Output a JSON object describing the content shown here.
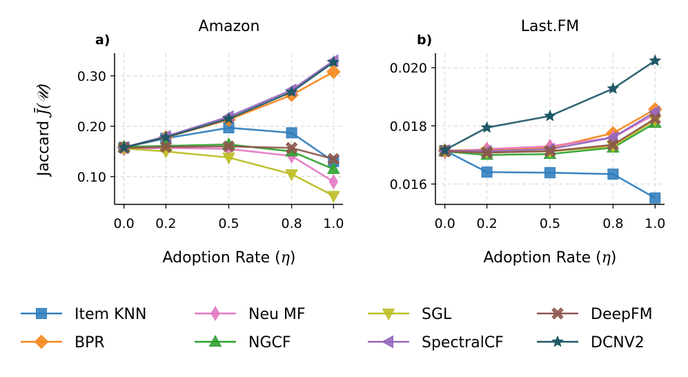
{
  "figure": {
    "ylabel_text": "Jaccard",
    "ylabel_symbol": "J̄(𝒰)"
  },
  "colors": {
    "Item KNN": "#2f7dbd",
    "BPR": "#f58518",
    "Neu MF": "#e377c2",
    "NGCF": "#2ca02c",
    "SGL": "#bcbd22",
    "SpectralCF": "#9467bd",
    "DeepFM": "#8c564b",
    "DCNV2": "#1f5866"
  },
  "markers": {
    "Item KNN": "square-icon",
    "BPR": "diamond-icon",
    "Neu MF": "thin-diamond-icon",
    "NGCF": "triangle-up-icon",
    "SGL": "triangle-down-icon",
    "SpectralCF": "triangle-left-icon",
    "DeepFM": "x-filled-icon",
    "DCNV2": "star-icon"
  },
  "chart_data": [
    {
      "type": "line",
      "panel": "a)",
      "title": "Amazon",
      "xlabel": "Adoption Rate (η)",
      "ylabel": "Jaccard J̄(𝒰)",
      "x": [
        0.0,
        0.2,
        0.5,
        0.8,
        1.0
      ],
      "xticks": [
        "0.0",
        "0.2",
        "0.5",
        "0.8",
        "1.0"
      ],
      "ylim": [
        0.045,
        0.345
      ],
      "yticks": [
        0.1,
        0.2,
        0.3
      ],
      "ytick_labels": [
        "0.10",
        "0.20",
        "0.30"
      ],
      "grid": true,
      "series": [
        {
          "name": "Item KNN",
          "values": [
            0.158,
            0.176,
            0.197,
            0.187,
            0.13
          ]
        },
        {
          "name": "BPR",
          "values": [
            0.158,
            0.178,
            0.213,
            0.262,
            0.308
          ]
        },
        {
          "name": "Neu MF",
          "values": [
            0.155,
            0.157,
            0.155,
            0.141,
            0.09
          ]
        },
        {
          "name": "NGCF",
          "values": [
            0.159,
            0.161,
            0.164,
            0.15,
            0.115
          ]
        },
        {
          "name": "SGL",
          "values": [
            0.156,
            0.15,
            0.138,
            0.105,
            0.062
          ]
        },
        {
          "name": "SpectralCF",
          "values": [
            0.158,
            0.18,
            0.219,
            0.272,
            0.33
          ]
        },
        {
          "name": "DeepFM",
          "values": [
            0.157,
            0.159,
            0.16,
            0.157,
            0.135
          ]
        },
        {
          "name": "DCNV2",
          "values": [
            0.158,
            0.178,
            0.215,
            0.268,
            0.327
          ]
        }
      ]
    },
    {
      "type": "line",
      "panel": "b)",
      "title": "Last.FM",
      "xlabel": "Adoption Rate (η)",
      "ylabel": "",
      "x": [
        0.0,
        0.2,
        0.5,
        0.8,
        1.0
      ],
      "xticks": [
        "0.0",
        "0.2",
        "0.5",
        "0.8",
        "1.0"
      ],
      "ylim": [
        0.0153,
        0.0205
      ],
      "yticks": [
        0.016,
        0.018,
        0.02
      ],
      "ytick_labels": [
        "0.016",
        "0.018",
        "0.020"
      ],
      "grid": true,
      "series": [
        {
          "name": "Item KNN",
          "values": [
            0.01715,
            0.01641,
            0.01639,
            0.01634,
            0.01552
          ]
        },
        {
          "name": "BPR",
          "values": [
            0.01715,
            0.01718,
            0.01724,
            0.01775,
            0.01857
          ]
        },
        {
          "name": "Neu MF",
          "values": [
            0.0171,
            0.0172,
            0.0173,
            0.0176,
            0.0184
          ]
        },
        {
          "name": "NGCF",
          "values": [
            0.01712,
            0.017,
            0.01703,
            0.01725,
            0.0181
          ]
        },
        {
          "name": "SGL",
          "values": [
            0.01713,
            0.0171,
            0.01712,
            0.0173,
            0.0182
          ]
        },
        {
          "name": "SpectralCF",
          "values": [
            0.01715,
            0.01713,
            0.0172,
            0.0176,
            0.01848
          ]
        },
        {
          "name": "DeepFM",
          "values": [
            0.01712,
            0.01708,
            0.01713,
            0.01735,
            0.01825
          ]
        },
        {
          "name": "DCNV2",
          "values": [
            0.01717,
            0.01794,
            0.01834,
            0.01928,
            0.02024
          ]
        }
      ]
    }
  ],
  "legend": {
    "placement": "bottom",
    "columns": [
      [
        "Item KNN",
        "BPR"
      ],
      [
        "Neu MF",
        "NGCF"
      ],
      [
        "SGL",
        "SpectralCF"
      ],
      [
        "DeepFM",
        "DCNV2"
      ]
    ]
  }
}
